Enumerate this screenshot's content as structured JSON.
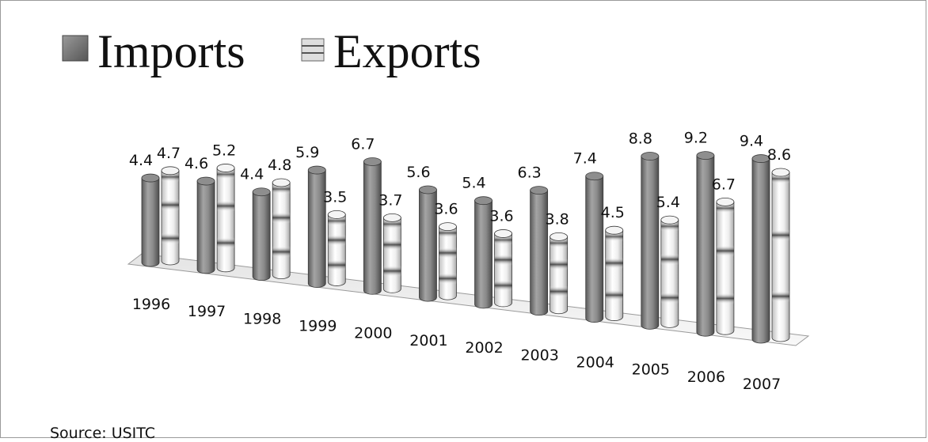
{
  "chart_data": {
    "type": "bar",
    "categories": [
      "1996",
      "1997",
      "1998",
      "1999",
      "2000",
      "2001",
      "2002",
      "2003",
      "2004",
      "2005",
      "2006",
      "2007"
    ],
    "series": [
      {
        "name": "Imports",
        "values": [
          4.4,
          4.6,
          4.4,
          5.9,
          6.7,
          5.6,
          5.4,
          6.3,
          7.4,
          8.8,
          9.2,
          9.4
        ]
      },
      {
        "name": "Exports",
        "values": [
          4.7,
          5.2,
          4.8,
          3.5,
          3.7,
          3.6,
          3.6,
          3.8,
          4.5,
          5.4,
          6.7,
          8.6
        ]
      }
    ],
    "legend_position": "top-left",
    "grid": false,
    "ylim": [
      0,
      10
    ],
    "colors": {
      "Imports": "#7a7a7a",
      "Exports": "#ececec"
    }
  },
  "source_note": "Source: USITC"
}
